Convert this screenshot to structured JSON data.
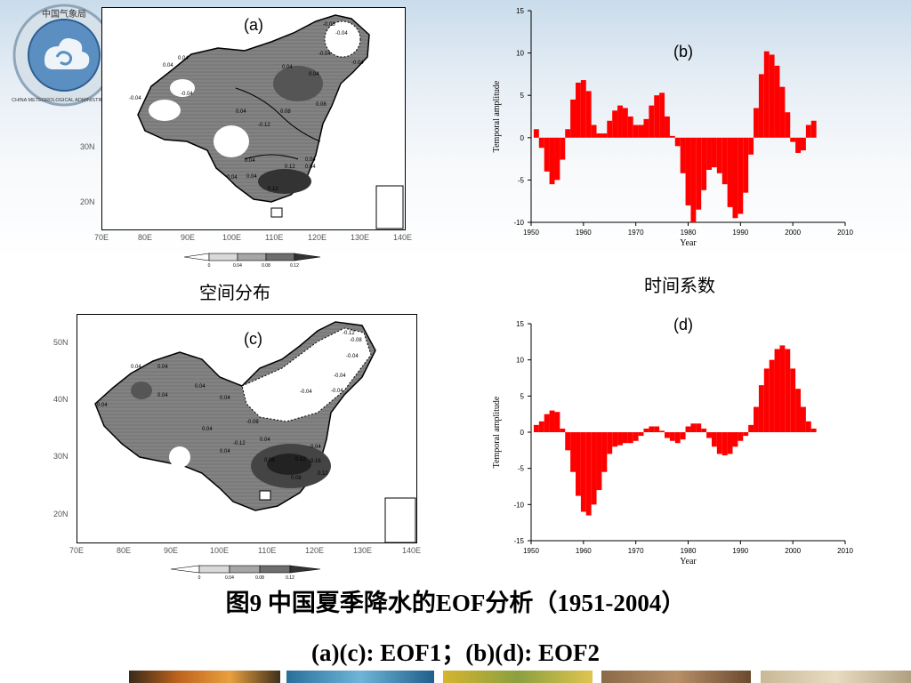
{
  "logo": {
    "top_text": "中国气象局",
    "ring_text": "CHINA METEOROLOGICAL ADMINISTRATION"
  },
  "panels": {
    "a_label": "(a)",
    "b_label": "(b)",
    "c_label": "(c)",
    "d_label": "(d)"
  },
  "map_axes": {
    "lon_ticks": [
      "70E",
      "80E",
      "90E",
      "100E",
      "110E",
      "120E",
      "130E",
      "140E"
    ],
    "lat_ticks_a": [
      "30N",
      "20N"
    ],
    "lat_ticks_c": [
      "50N",
      "40N",
      "30N",
      "20N"
    ],
    "colorbar_ticks": [
      "0",
      "0.04",
      "0.08",
      "0.12"
    ]
  },
  "map_contours_a": [
    "-0.08",
    "-0.04",
    "-0.04",
    "-0.04",
    "0.04",
    "0.04",
    "0.04",
    "0.04",
    "0.08",
    "0.08",
    "0.04",
    "-0.04",
    "-0.12",
    "-0.04",
    "0.04",
    "0.12",
    "0.04",
    "0.04",
    "0.04",
    "0.12",
    "0.04"
  ],
  "map_contours_c": [
    "-0.12",
    "-0.08",
    "-0.04",
    "-0.04",
    "-0.04",
    "-0.04",
    "0.04",
    "0.04",
    "0.04",
    "0.04",
    "0.04",
    "0.04",
    "-0.08",
    "-0.12",
    "0.04",
    "0.08",
    "0.12",
    "0.16",
    "0.12",
    "0.08",
    "0.04",
    "0.04",
    "0.04"
  ],
  "captions": {
    "spatial": "空间分布",
    "temporal": "时间系数"
  },
  "title": {
    "main": "图9 中国夏季降水的EOF分析（1951-2004）",
    "sub": "(a)(c): EOF1；(b)(d): EOF2"
  },
  "chart_data": [
    {
      "id": "b",
      "type": "bar",
      "xlabel": "Year",
      "ylabel": "Temporal amplitude",
      "xlim": [
        1950,
        2010
      ],
      "ylim": [
        -10,
        15
      ],
      "xticks": [
        1950,
        1960,
        1970,
        1980,
        1990,
        2000,
        2010
      ],
      "yticks": [
        -10,
        -5,
        0,
        5,
        10,
        15
      ],
      "bar_color": "#ff0000",
      "x": [
        1951,
        1952,
        1953,
        1954,
        1955,
        1956,
        1957,
        1958,
        1959,
        1960,
        1961,
        1962,
        1963,
        1964,
        1965,
        1966,
        1967,
        1968,
        1969,
        1970,
        1971,
        1972,
        1973,
        1974,
        1975,
        1976,
        1977,
        1978,
        1979,
        1980,
        1981,
        1982,
        1983,
        1984,
        1985,
        1986,
        1987,
        1988,
        1989,
        1990,
        1991,
        1992,
        1993,
        1994,
        1995,
        1996,
        1997,
        1998,
        1999,
        2000,
        2001,
        2002,
        2003,
        2004
      ],
      "values": [
        1.0,
        -1.2,
        -4.0,
        -5.5,
        -5.0,
        -2.6,
        1.0,
        4.5,
        6.5,
        6.8,
        5.5,
        1.5,
        0.5,
        0.5,
        2.0,
        3.2,
        3.8,
        3.5,
        2.5,
        1.5,
        1.5,
        2.2,
        3.8,
        5.0,
        5.3,
        2.5,
        0.2,
        -1.0,
        -4.2,
        -8.0,
        -10.0,
        -8.5,
        -6.2,
        -3.8,
        -3.5,
        -4.2,
        -5.5,
        -8.2,
        -9.5,
        -9.0,
        -6.5,
        -2.0,
        3.5,
        7.5,
        10.2,
        9.8,
        8.5,
        6.0,
        3.0,
        -0.5,
        -1.8,
        -1.5,
        1.5,
        2.0
      ]
    },
    {
      "id": "d",
      "type": "bar",
      "xlabel": "Year",
      "ylabel": "Temporal amplitude",
      "xlim": [
        1950,
        2010
      ],
      "ylim": [
        -15,
        15
      ],
      "xticks": [
        1950,
        1960,
        1970,
        1980,
        1990,
        2000,
        2010
      ],
      "yticks": [
        -15,
        -10,
        -5,
        0,
        5,
        10,
        15
      ],
      "bar_color": "#ff0000",
      "x": [
        1951,
        1952,
        1953,
        1954,
        1955,
        1956,
        1957,
        1958,
        1959,
        1960,
        1961,
        1962,
        1963,
        1964,
        1965,
        1966,
        1967,
        1968,
        1969,
        1970,
        1971,
        1972,
        1973,
        1974,
        1975,
        1976,
        1977,
        1978,
        1979,
        1980,
        1981,
        1982,
        1983,
        1984,
        1985,
        1986,
        1987,
        1988,
        1989,
        1990,
        1991,
        1992,
        1993,
        1994,
        1995,
        1996,
        1997,
        1998,
        1999,
        2000,
        2001,
        2002,
        2003,
        2004
      ],
      "values": [
        1.0,
        1.5,
        2.5,
        3.0,
        2.8,
        0.5,
        -2.5,
        -5.5,
        -8.8,
        -11.0,
        -11.5,
        -10.0,
        -8.0,
        -5.5,
        -3.0,
        -2.0,
        -1.8,
        -1.5,
        -1.5,
        -1.2,
        -0.5,
        0.5,
        0.8,
        0.8,
        0.2,
        -0.8,
        -1.2,
        -1.5,
        -1.0,
        0.8,
        1.2,
        1.2,
        0.5,
        -0.8,
        -2.0,
        -3.0,
        -3.2,
        -3.0,
        -2.0,
        -1.2,
        -0.5,
        1.0,
        3.5,
        6.5,
        8.8,
        10.0,
        11.5,
        12.0,
        11.5,
        8.8,
        6.0,
        3.5,
        1.5,
        0.5
      ]
    }
  ]
}
